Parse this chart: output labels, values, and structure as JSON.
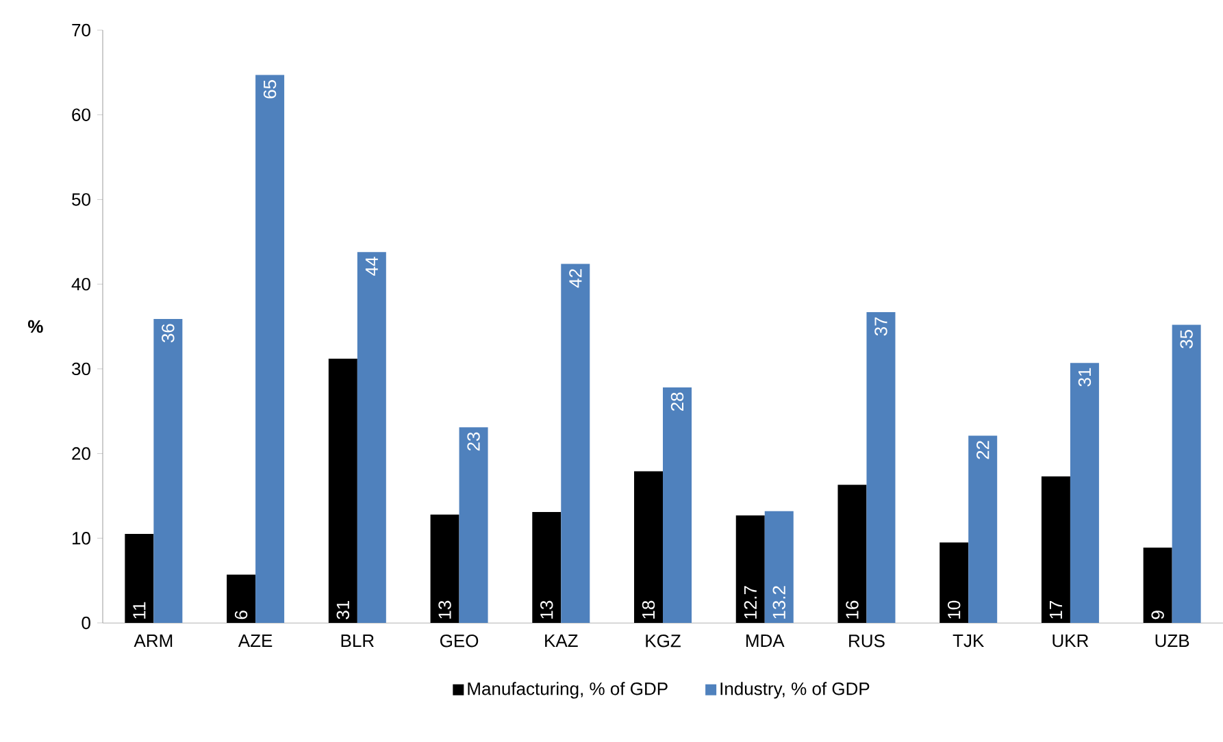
{
  "chart_data": {
    "type": "bar",
    "ylabel": "%",
    "categories": [
      "ARM",
      "AZE",
      "BLR",
      "GEO",
      "KAZ",
      "KGZ",
      "MDA",
      "RUS",
      "TJK",
      "UKR",
      "UZB"
    ],
    "series": [
      {
        "name": "Manufacturing, % of GDP",
        "color": "#000000",
        "values": [
          10.5,
          5.7,
          31.2,
          12.8,
          13.1,
          17.9,
          12.7,
          16.3,
          9.5,
          17.3,
          8.9
        ],
        "value_labels": [
          "11",
          "6",
          "31",
          "13",
          "13",
          "18",
          "12.7",
          "16",
          "10",
          "17",
          "9"
        ]
      },
      {
        "name": "Industry, % of GDP",
        "color": "#4f81bd",
        "values": [
          35.9,
          64.7,
          43.8,
          23.1,
          42.4,
          27.8,
          13.2,
          36.7,
          22.1,
          30.7,
          35.2
        ],
        "value_labels": [
          "36",
          "65",
          "44",
          "23",
          "42",
          "28",
          "13.2",
          "37",
          "22",
          "31",
          "35"
        ]
      }
    ],
    "ylim": [
      0,
      70
    ],
    "yticks": [
      0,
      10,
      20,
      30,
      40,
      50,
      60,
      70
    ],
    "legend": "bottom"
  }
}
